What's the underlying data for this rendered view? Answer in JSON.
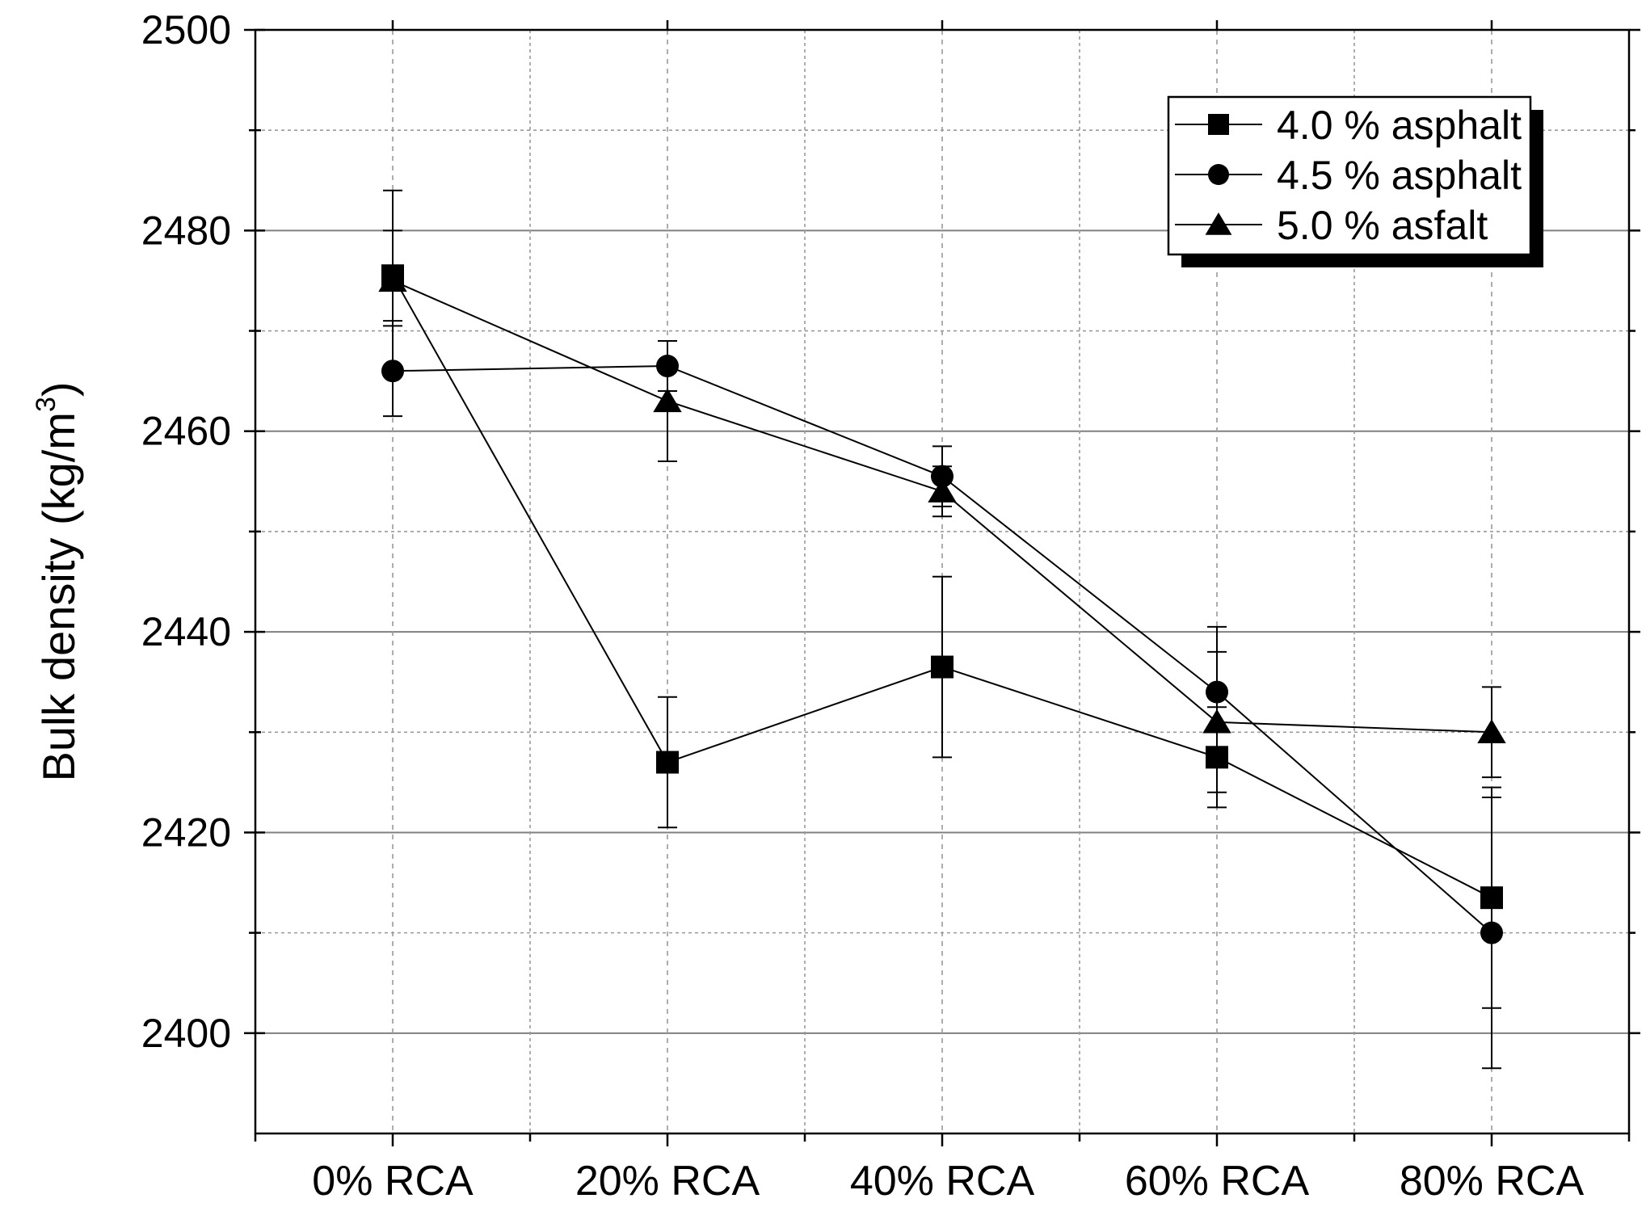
{
  "chart_data": {
    "type": "line",
    "title": "",
    "xlabel": "",
    "ylabel": "Bulk density (kg/m",
    "ylabel_sup": "3",
    "ylabel_close": ")",
    "categories": [
      "0% RCA",
      "20% RCA",
      "40% RCA",
      "60% RCA",
      "80% RCA"
    ],
    "ylim": [
      2390,
      2500
    ],
    "yticks": [
      "2400",
      "2420",
      "2440",
      "2460",
      "2480",
      "2500"
    ],
    "grid": true,
    "legend_position": "top-right",
    "series": [
      {
        "name": "4.0 % asphalt",
        "marker": "square",
        "values": [
          2475.5,
          2427.0,
          2436.5,
          2427.5,
          2413.5
        ],
        "error": [
          4.5,
          6.5,
          9.0,
          5.0,
          11.0
        ]
      },
      {
        "name": "4.5 % asphalt",
        "marker": "circle",
        "values": [
          2466.0,
          2466.5,
          2455.5,
          2434.0,
          2410.0
        ],
        "error": [
          4.5,
          2.5,
          3.0,
          6.5,
          13.5
        ]
      },
      {
        "name": "5.0 % asfalt",
        "marker": "triangle",
        "values": [
          2475.0,
          2463.0,
          2454.0,
          2431.0,
          2430.0
        ],
        "error": [
          9.0,
          6.0,
          2.5,
          7.0,
          4.5
        ]
      }
    ],
    "colors": {
      "line": "#000000",
      "major_grid": "#808080",
      "minor_grid": "#9a9a9a",
      "background": "#ffffff"
    }
  }
}
